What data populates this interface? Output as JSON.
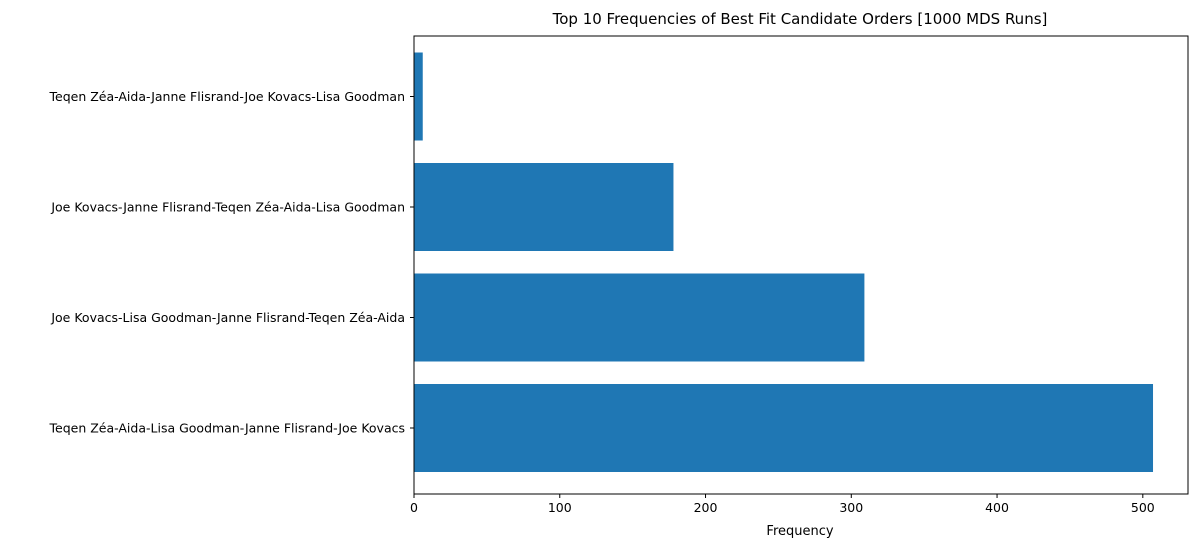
{
  "chart_data": {
    "type": "bar",
    "orientation": "horizontal",
    "title": "Top 10 Frequencies of Best Fit Candidate Orders [1000 MDS Runs]",
    "xlabel": "Frequency",
    "ylabel": "",
    "categories": [
      "Teqen Zéa-Aida-Lisa Goodman-Janne Flisrand-Joe Kovacs",
      "Joe Kovacs-Lisa Goodman-Janne Flisrand-Teqen Zéa-Aida",
      "Joe Kovacs-Janne Flisrand-Teqen Zéa-Aida-Lisa Goodman",
      "Teqen Zéa-Aida-Janne Flisrand-Joe Kovacs-Lisa Goodman"
    ],
    "values": [
      507,
      309,
      178,
      6
    ],
    "xlim": [
      0,
      531
    ],
    "xticks": [
      0,
      100,
      200,
      300,
      400,
      500
    ],
    "grid": false,
    "bar_color": "#1f77b4"
  }
}
